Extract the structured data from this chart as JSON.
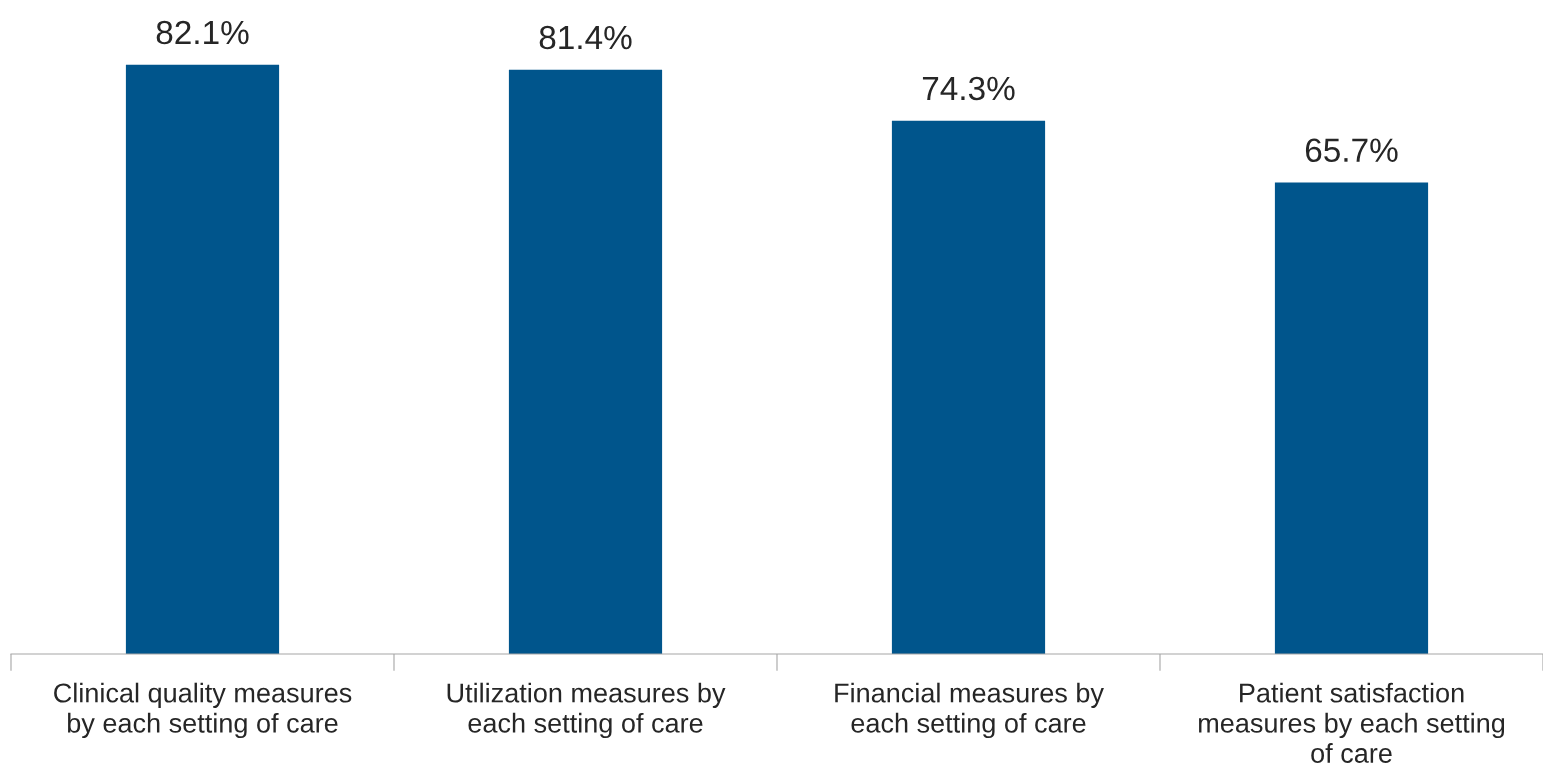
{
  "chart_data": {
    "type": "bar",
    "categories": [
      "Clinical quality measures\nby each setting of care",
      "Utilization measures by\neach setting of care",
      "Financial measures by\neach setting of care",
      "Patient satisfaction\nmeasures by each setting\nof care"
    ],
    "values": [
      82.1,
      81.4,
      74.3,
      65.7
    ],
    "value_labels": [
      "82.1%",
      "81.4%",
      "74.3%",
      "65.7%"
    ],
    "color": "#00558c",
    "grid": false,
    "legend": false,
    "tick_labels": "x"
  }
}
